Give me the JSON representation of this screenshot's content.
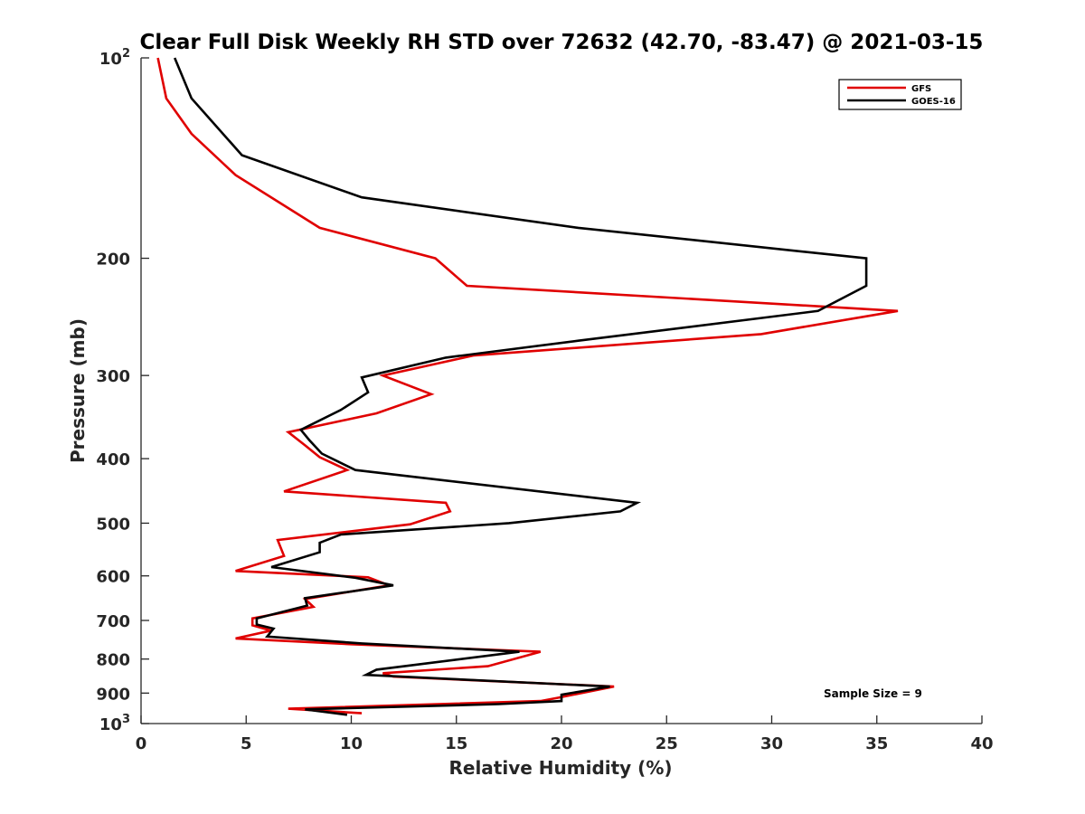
{
  "chart_data": {
    "type": "line",
    "title": "Clear Full Disk Weekly RH STD over 72632 (42.70, -83.47) @ 2021-03-15",
    "xlabel": "Relative Humidity (%)",
    "ylabel": "Pressure (mb)",
    "xlim": [
      0,
      40
    ],
    "ylim": [
      100,
      1000
    ],
    "y_scale": "log",
    "y_reversed": true,
    "grid": false,
    "legend_position": "top-right",
    "x_ticks": [
      "0",
      "5",
      "10",
      "15",
      "20",
      "25",
      "30",
      "35",
      "40"
    ],
    "y_ticks": [
      {
        "value": 100,
        "base": "10",
        "exp": "2"
      },
      {
        "value": 200,
        "label": "200"
      },
      {
        "value": 300,
        "label": "300"
      },
      {
        "value": 400,
        "label": "400"
      },
      {
        "value": 500,
        "label": "500"
      },
      {
        "value": 600,
        "label": "600"
      },
      {
        "value": 700,
        "label": "700"
      },
      {
        "value": 800,
        "label": "800"
      },
      {
        "value": 900,
        "label": "900"
      },
      {
        "value": 1000,
        "base": "10",
        "exp": "3"
      }
    ],
    "annotation": "Sample Size = 9",
    "series": [
      {
        "name": "GFS",
        "color": "#e00000",
        "points": [
          [
            0.8,
            100
          ],
          [
            1.2,
            115
          ],
          [
            2.4,
            130
          ],
          [
            4.5,
            150
          ],
          [
            8.5,
            180
          ],
          [
            14.0,
            200
          ],
          [
            15.5,
            220
          ],
          [
            36.0,
            240
          ],
          [
            29.5,
            260
          ],
          [
            15.8,
            280
          ],
          [
            11.5,
            300
          ],
          [
            13.8,
            320
          ],
          [
            11.2,
            342
          ],
          [
            7.0,
            365
          ],
          [
            7.8,
            382
          ],
          [
            8.5,
            398
          ],
          [
            9.8,
            416
          ],
          [
            6.8,
            448
          ],
          [
            14.5,
            466
          ],
          [
            14.7,
            480
          ],
          [
            12.8,
            502
          ],
          [
            6.5,
            530
          ],
          [
            6.8,
            560
          ],
          [
            4.5,
            590
          ],
          [
            10.8,
            603
          ],
          [
            11.8,
            620
          ],
          [
            7.8,
            650
          ],
          [
            8.2,
            668
          ],
          [
            5.3,
            695
          ],
          [
            5.3,
            712
          ],
          [
            6.2,
            725
          ],
          [
            4.5,
            745
          ],
          [
            10.0,
            760
          ],
          [
            19.0,
            780
          ],
          [
            16.5,
            820
          ],
          [
            11.5,
            840
          ],
          [
            12.0,
            850
          ],
          [
            22.5,
            880
          ],
          [
            19.8,
            915
          ],
          [
            19.0,
            925
          ],
          [
            7.0,
            950
          ],
          [
            10.5,
            965
          ]
        ]
      },
      {
        "name": "GOES-16",
        "color": "#000000",
        "points": [
          [
            1.6,
            100
          ],
          [
            2.4,
            115
          ],
          [
            4.8,
            140
          ],
          [
            10.5,
            162
          ],
          [
            20.8,
            180
          ],
          [
            34.5,
            200
          ],
          [
            34.5,
            220
          ],
          [
            32.2,
            240
          ],
          [
            20.8,
            266
          ],
          [
            14.5,
            282
          ],
          [
            10.5,
            302
          ],
          [
            10.8,
            318
          ],
          [
            9.5,
            338
          ],
          [
            7.6,
            362
          ],
          [
            8.0,
            375
          ],
          [
            8.6,
            393
          ],
          [
            10.2,
            416
          ],
          [
            23.6,
            466
          ],
          [
            22.8,
            480
          ],
          [
            17.5,
            500
          ],
          [
            9.5,
            520
          ],
          [
            8.5,
            535
          ],
          [
            8.5,
            553
          ],
          [
            6.2,
            582
          ],
          [
            10.2,
            604
          ],
          [
            12.0,
            620
          ],
          [
            7.8,
            648
          ],
          [
            7.9,
            665
          ],
          [
            5.5,
            695
          ],
          [
            5.5,
            710
          ],
          [
            6.3,
            720
          ],
          [
            6.0,
            740
          ],
          [
            10.5,
            758
          ],
          [
            18.0,
            780
          ],
          [
            11.2,
            830
          ],
          [
            10.7,
            845
          ],
          [
            22.3,
            880
          ],
          [
            20.0,
            905
          ],
          [
            20.0,
            925
          ],
          [
            17.0,
            935
          ],
          [
            7.8,
            952
          ],
          [
            9.8,
            970
          ]
        ]
      }
    ]
  }
}
